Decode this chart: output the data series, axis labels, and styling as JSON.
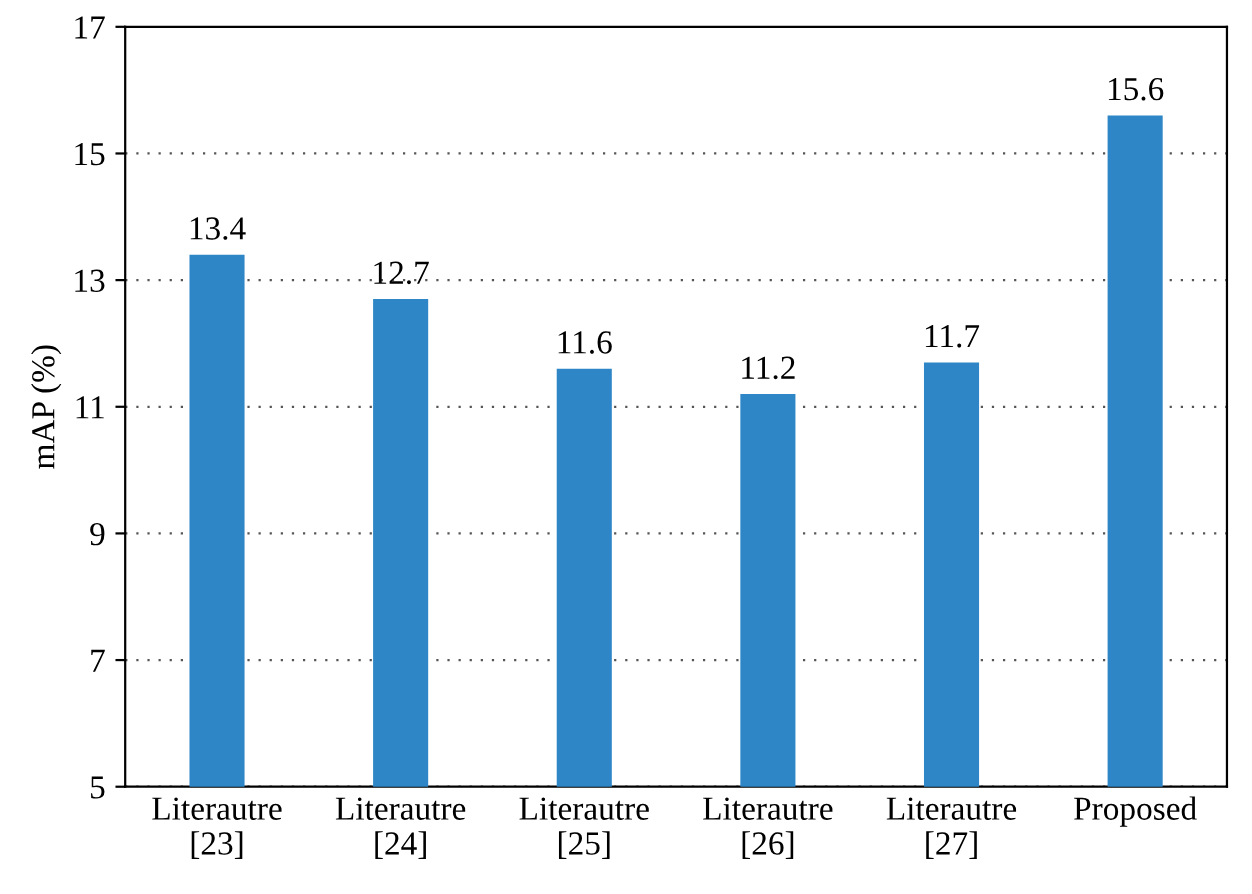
{
  "chart_data": {
    "type": "bar",
    "ylabel": "mAP (%)",
    "categories": [
      "Literautre\n[23]",
      "Literautre\n[24]",
      "Literautre\n[25]",
      "Literautre\n[26]",
      "Literautre\n[27]",
      "Proposed"
    ],
    "values": [
      13.4,
      12.7,
      11.6,
      11.2,
      11.7,
      15.6
    ],
    "color": "#2e86c6",
    "ylim": [
      5,
      17
    ],
    "yticks": [
      5,
      7,
      9,
      11,
      13,
      15,
      17
    ],
    "grid": "y",
    "data_labels": true
  }
}
